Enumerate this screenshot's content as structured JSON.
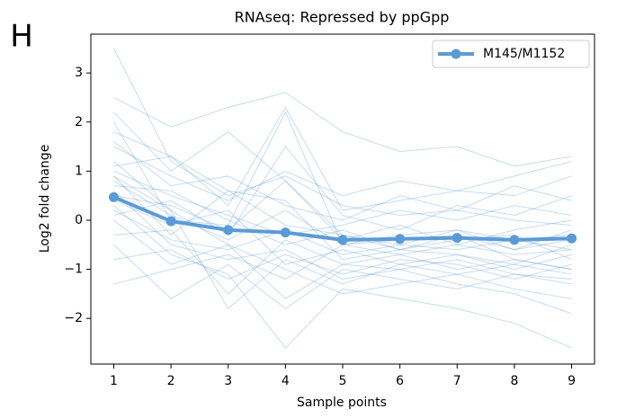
{
  "chart_data": {
    "type": "line",
    "panel_label": "H",
    "title": "RNAseq: Repressed by ppGpp",
    "xlabel": "Sample points",
    "ylabel": "Log2 fold change",
    "x": [
      1,
      2,
      3,
      4,
      5,
      6,
      7,
      8,
      9
    ],
    "series": [
      {
        "name": "M145/M1152",
        "color": "#5b9bd5",
        "values": [
          0.47,
          -0.02,
          -0.2,
          -0.25,
          -0.4,
          -0.38,
          -0.36,
          -0.4,
          -0.37
        ]
      }
    ],
    "background_lines": {
      "color": "#5b9bd5",
      "lines": [
        [
          3.5,
          1.2,
          0.5,
          0.9,
          0.3,
          0.1,
          0.2,
          0.0,
          -0.1
        ],
        [
          2.5,
          1.9,
          2.3,
          2.6,
          1.8,
          1.4,
          1.5,
          1.1,
          1.3
        ],
        [
          2.2,
          1.0,
          1.8,
          0.8,
          -0.3,
          -0.5,
          -0.2,
          -0.4,
          -0.6
        ],
        [
          1.8,
          1.3,
          0.3,
          2.3,
          0.2,
          0.4,
          0.6,
          0.5,
          0.9
        ],
        [
          1.5,
          0.9,
          0.4,
          1.0,
          0.5,
          0.8,
          0.6,
          0.9,
          1.2
        ],
        [
          1.2,
          0.2,
          -0.5,
          -1.6,
          -0.9,
          -1.0,
          -0.8,
          -1.1,
          -1.2
        ],
        [
          1.0,
          0.5,
          0.1,
          -0.3,
          -0.1,
          0.2,
          0.0,
          0.3,
          0.1
        ],
        [
          0.9,
          -0.3,
          0.6,
          0.4,
          -0.8,
          -0.6,
          -0.7,
          -0.9,
          -0.5
        ],
        [
          0.8,
          0.1,
          -0.4,
          0.2,
          -0.5,
          -0.3,
          -0.2,
          -0.6,
          -0.4
        ],
        [
          0.7,
          0.6,
          0.0,
          -0.5,
          -0.2,
          -0.6,
          -0.4,
          -0.3,
          -0.8
        ],
        [
          0.6,
          -0.5,
          -0.8,
          -0.6,
          -1.2,
          -1.0,
          -1.3,
          -1.5,
          -1.9
        ],
        [
          0.5,
          0.3,
          -0.2,
          0.8,
          -0.4,
          -0.1,
          -0.5,
          -0.2,
          0.0
        ],
        [
          0.4,
          -0.1,
          0.2,
          -0.9,
          -0.6,
          -0.9,
          -0.7,
          -1.0,
          -0.7
        ],
        [
          0.3,
          -0.7,
          -1.1,
          -2.6,
          -1.4,
          -1.6,
          -1.8,
          -2.1,
          -2.6
        ],
        [
          0.2,
          -0.4,
          -0.6,
          -0.2,
          -0.7,
          -0.5,
          -0.6,
          -0.4,
          -0.3
        ],
        [
          0.1,
          0.4,
          -0.3,
          1.5,
          0.1,
          -0.2,
          0.3,
          0.1,
          0.5
        ],
        [
          0.0,
          -0.9,
          -0.5,
          -1.0,
          -1.5,
          -1.3,
          -1.1,
          -1.4,
          -1.6
        ],
        [
          -0.3,
          -0.2,
          -1.5,
          -0.4,
          -0.9,
          -0.7,
          -1.0,
          -0.8,
          -1.0
        ],
        [
          -0.5,
          -1.6,
          -0.9,
          -1.8,
          -1.0,
          -1.2,
          -1.4,
          -1.1,
          -1.3
        ],
        [
          -0.8,
          -0.6,
          -1.2,
          -0.7,
          -1.1,
          -0.8,
          -0.9,
          -1.2,
          -0.9
        ],
        [
          -1.3,
          -1.0,
          -0.7,
          -1.2,
          -0.5,
          -0.4,
          -0.3,
          -0.6,
          -0.2
        ],
        [
          1.6,
          0.7,
          0.9,
          0.3,
          0.0,
          0.5,
          0.2,
          0.7,
          0.4
        ],
        [
          1.1,
          1.3,
          0.6,
          -0.1,
          -0.3,
          -0.6,
          -0.3,
          -0.8,
          -1.0
        ],
        [
          0.9,
          0.2,
          -1.8,
          -0.8,
          -1.3,
          -0.9,
          -1.1,
          -0.9,
          -1.1
        ],
        [
          2.0,
          0.0,
          -0.1,
          2.2,
          -0.5,
          -0.7,
          -0.5,
          -0.7,
          -0.6
        ]
      ]
    },
    "xlim": [
      0.6,
      9.4
    ],
    "xticks": [
      1,
      2,
      3,
      4,
      5,
      6,
      7,
      8,
      9
    ],
    "ylim": [
      -2.93,
      3.79
    ],
    "yticks": [
      {
        "value": -2,
        "label": "−2"
      },
      {
        "value": -1,
        "label": "−1"
      },
      0,
      1,
      2,
      3
    ],
    "legend": "upper right"
  }
}
